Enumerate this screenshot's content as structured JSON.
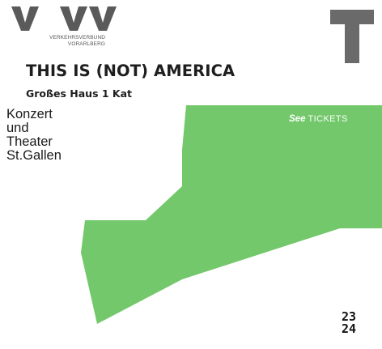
{
  "header": {
    "logo_letters": "V  VV",
    "logo_subtitle_line1": "VERKEHRSVERBUND",
    "logo_subtitle_line2": "VORARLBERG",
    "corner_logo_letter": "T"
  },
  "event": {
    "title": "THIS IS (NOT) AMERICA",
    "category": "Großes Haus 1 Kat"
  },
  "venue": {
    "lines": [
      "Konzert",
      "und",
      "Theater",
      "St.Gallen"
    ]
  },
  "brand": {
    "see": "See",
    "tickets": "TICKETS"
  },
  "season": {
    "line1": "23",
    "line2": "24"
  },
  "colors": {
    "accent_green": "#72c86a",
    "text_dark": "#1e1e1e",
    "logo_gray": "#5a5a5a",
    "corner_t_gray": "#6a6a6a"
  }
}
